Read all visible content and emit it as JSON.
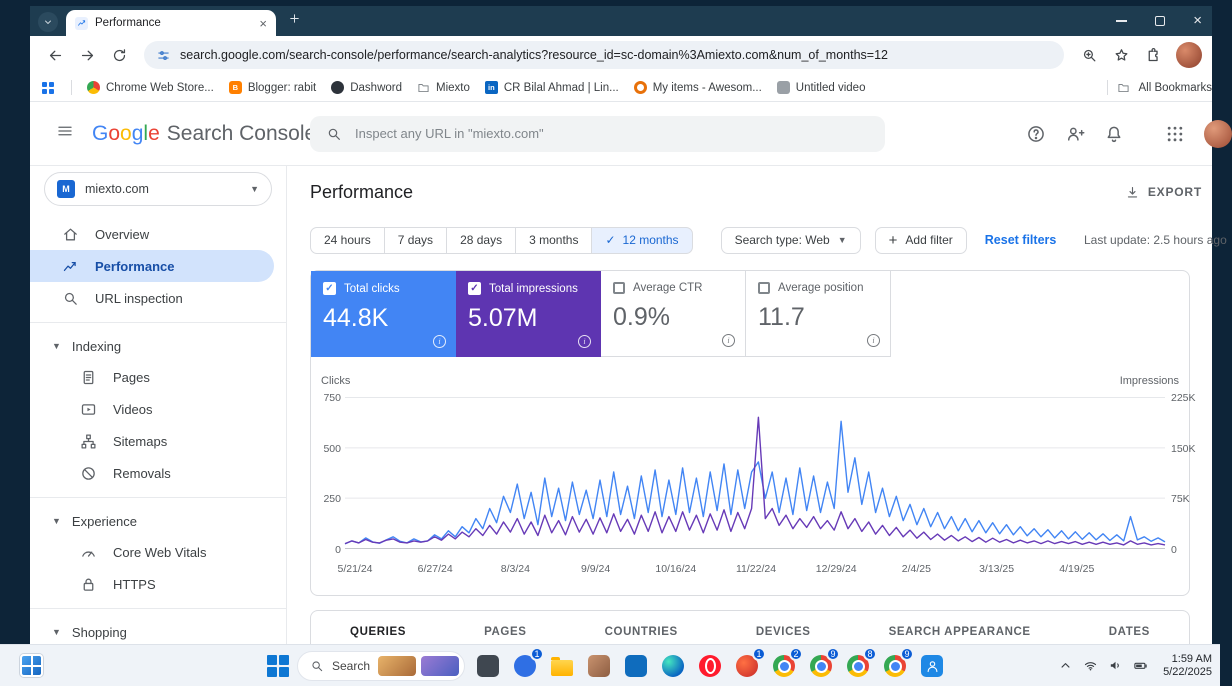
{
  "browser": {
    "tab_title": "Performance",
    "url": "search.google.com/search-console/performance/search-analytics?resource_id=sc-domain%3Amiexto.com&num_of_months=12",
    "bookmarks": [
      {
        "label": "Chrome Web Store...",
        "icon": "webstore"
      },
      {
        "label": "Blogger: rabit",
        "icon": "blogger"
      },
      {
        "label": "Dashword",
        "icon": "dashword"
      },
      {
        "label": "Miexto",
        "icon": "folder"
      },
      {
        "label": "CR Bilal Ahmad | Lin...",
        "icon": "linkedin"
      },
      {
        "label": "My items - Awesom...",
        "icon": "myitems"
      },
      {
        "label": "Untitled video",
        "icon": "videofile"
      }
    ],
    "all_bookmarks_label": "All Bookmarks"
  },
  "console": {
    "brand_letters": [
      [
        "G",
        "#4285f4"
      ],
      [
        "o",
        "#ea4335"
      ],
      [
        "o",
        "#fbbc05"
      ],
      [
        "g",
        "#4285f4"
      ],
      [
        "l",
        "#34a853"
      ],
      [
        "e",
        "#ea4335"
      ]
    ],
    "brand_suffix": "Search Console",
    "inspect_placeholder": "Inspect any URL in \"miexto.com\"",
    "property_name": "miexto.com",
    "property_initial": "M",
    "sidebar": [
      {
        "type": "item",
        "icon": "home",
        "label": "Overview"
      },
      {
        "type": "item",
        "icon": "chart",
        "label": "Performance",
        "selected": true
      },
      {
        "type": "item",
        "icon": "search",
        "label": "URL inspection"
      },
      {
        "type": "divider"
      },
      {
        "type": "section",
        "label": "Indexing"
      },
      {
        "type": "sub",
        "icon": "doc",
        "label": "Pages"
      },
      {
        "type": "sub",
        "icon": "video",
        "label": "Videos"
      },
      {
        "type": "sub",
        "icon": "sitemap",
        "label": "Sitemaps"
      },
      {
        "type": "sub",
        "icon": "block",
        "label": "Removals"
      },
      {
        "type": "divider"
      },
      {
        "type": "section",
        "label": "Experience"
      },
      {
        "type": "sub",
        "icon": "gauge",
        "label": "Core Web Vitals"
      },
      {
        "type": "sub",
        "icon": "lock",
        "label": "HTTPS"
      },
      {
        "type": "divider"
      },
      {
        "type": "section",
        "label": "Shopping"
      }
    ]
  },
  "main": {
    "title": "Performance",
    "export_label": "EXPORT",
    "date_ranges": [
      "24 hours",
      "7 days",
      "28 days",
      "3 months",
      "12 months"
    ],
    "selected_range": "12 months",
    "search_type": "Search type: Web",
    "add_filter": "Add filter",
    "reset_filters": "Reset filters",
    "last_update": "Last update: 2.5 hours ago",
    "metrics": [
      {
        "label": "Total clicks",
        "value": "44.8K",
        "selected": true,
        "color": "#4285f4"
      },
      {
        "label": "Total impressions",
        "value": "5.07M",
        "selected": true,
        "color": "#5e35b1"
      },
      {
        "label": "Average CTR",
        "value": "0.9%",
        "selected": false,
        "color": ""
      },
      {
        "label": "Average position",
        "value": "11.7",
        "selected": false,
        "color": ""
      }
    ],
    "table_tabs": [
      "QUERIES",
      "PAGES",
      "COUNTRIES",
      "DEVICES",
      "SEARCH APPEARANCE",
      "DATES"
    ]
  },
  "chart_data": {
    "type": "line",
    "x_labels": [
      "5/21/24",
      "6/27/24",
      "8/3/24",
      "9/9/24",
      "10/16/24",
      "11/22/24",
      "12/29/24",
      "2/4/25",
      "3/13/25",
      "4/19/25"
    ],
    "left_axis": {
      "label": "Clicks",
      "ticks": [
        "750",
        "500",
        "250",
        "0"
      ],
      "max": 750
    },
    "right_axis": {
      "label": "Impressions",
      "ticks": [
        "225K",
        "150K",
        "75K",
        "0"
      ],
      "max": 225,
      "unit": "thousands"
    },
    "grid": true,
    "legend_position": "none",
    "series": [
      {
        "name": "Total clicks",
        "axis": "left",
        "color": "#4285f4",
        "values": [
          25,
          40,
          30,
          55,
          35,
          28,
          45,
          60,
          38,
          30,
          50,
          35,
          40,
          70,
          50,
          90,
          60,
          110,
          80,
          150,
          100,
          200,
          130,
          260,
          180,
          320,
          150,
          280,
          120,
          350,
          160,
          300,
          140,
          330,
          170,
          290,
          150,
          340,
          160,
          380,
          170,
          310,
          150,
          360,
          180,
          390,
          160,
          340,
          170,
          400,
          180,
          350,
          160,
          380,
          190,
          420,
          170,
          390,
          200,
          380,
          430,
          250,
          380,
          180,
          350,
          170,
          400,
          190,
          360,
          180,
          330,
          200,
          630,
          280,
          450,
          220,
          380,
          180,
          300,
          160,
          260,
          140,
          220,
          120,
          200,
          110,
          180,
          100,
          160,
          90,
          150,
          85,
          140,
          80,
          130,
          75,
          120,
          70,
          110,
          65,
          100,
          60,
          95,
          55,
          90,
          50,
          85,
          48,
          80,
          45,
          75,
          42,
          70,
          40,
          160,
          45,
          60,
          38,
          55,
          35
        ]
      },
      {
        "name": "Total impressions",
        "axis": "right",
        "color": "#673ab7",
        "values": [
          8,
          12,
          9,
          14,
          10,
          9,
          13,
          15,
          10,
          9,
          12,
          10,
          12,
          18,
          13,
          22,
          15,
          25,
          18,
          30,
          20,
          35,
          22,
          40,
          25,
          45,
          22,
          40,
          20,
          50,
          24,
          42,
          21,
          48,
          25,
          44,
          22,
          46,
          24,
          52,
          26,
          44,
          22,
          50,
          26,
          55,
          24,
          48,
          26,
          55,
          28,
          50,
          24,
          52,
          28,
          58,
          26,
          54,
          30,
          60,
          195,
          45,
          60,
          35,
          50,
          30,
          45,
          32,
          48,
          30,
          42,
          28,
          55,
          30,
          45,
          26,
          40,
          22,
          35,
          20,
          32,
          18,
          28,
          16,
          25,
          14,
          22,
          13,
          20,
          12,
          18,
          11,
          17,
          10,
          16,
          10,
          14,
          9,
          13,
          9,
          12,
          8,
          12,
          8,
          11,
          8,
          11,
          7,
          10,
          7,
          10,
          7,
          9,
          6,
          12,
          7,
          9,
          6,
          8,
          6
        ]
      }
    ]
  },
  "taskbar": {
    "search_label": "Search",
    "apps": [
      {
        "name": "notes-app",
        "kind": "dark"
      },
      {
        "name": "chat-app",
        "kind": "blue",
        "badge": "1"
      },
      {
        "name": "file-explorer",
        "kind": "folder"
      },
      {
        "name": "photos-app",
        "kind": "tan"
      },
      {
        "name": "microsoft-store",
        "kind": "store"
      },
      {
        "name": "edge-browser",
        "kind": "edge"
      },
      {
        "name": "opera-browser",
        "kind": "opera"
      },
      {
        "name": "media-app",
        "kind": "red",
        "badge": "1"
      },
      {
        "name": "chrome-browser",
        "kind": "chrome",
        "badge": "2"
      },
      {
        "name": "chrome-window-1",
        "kind": "chrome",
        "badge": "9"
      },
      {
        "name": "chrome-window-2",
        "kind": "chrome",
        "badge": "8"
      },
      {
        "name": "chrome-window-3",
        "kind": "chrome",
        "badge": "9"
      },
      {
        "name": "paint-app",
        "kind": "person"
      }
    ],
    "time": "1:59 AM",
    "date": "5/22/2025"
  }
}
